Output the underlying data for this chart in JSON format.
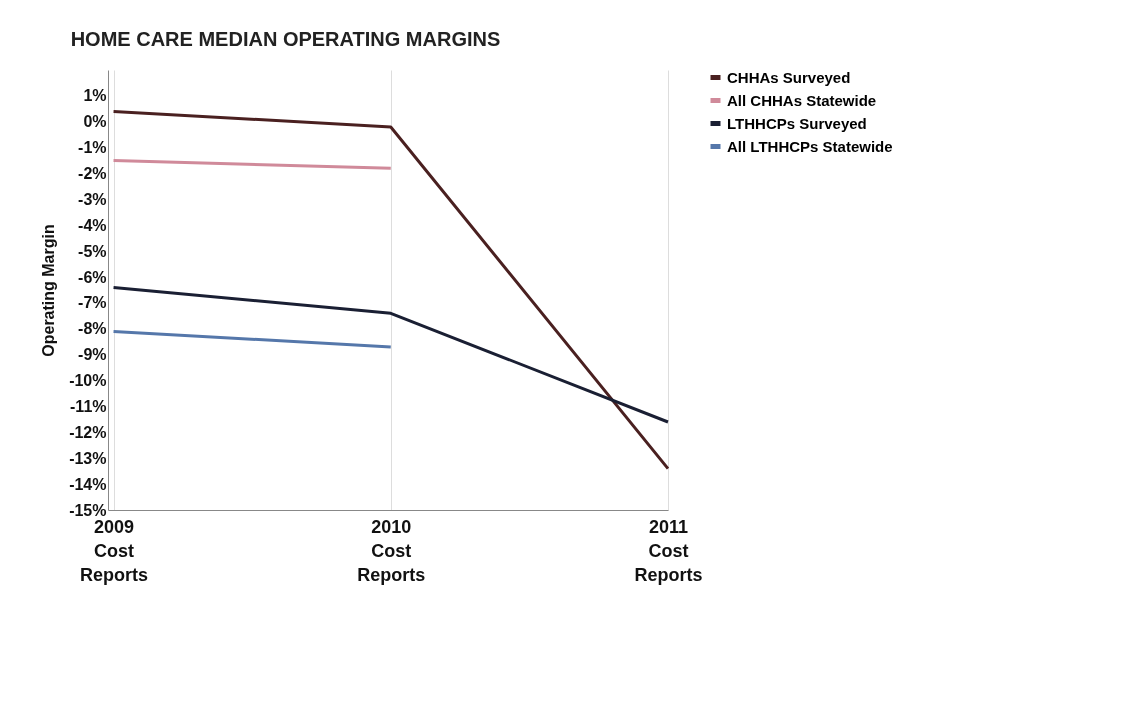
{
  "chart_data": {
    "type": "line",
    "title": "HOME CARE MEDIAN OPERATING MARGINS",
    "ylabel": "Operating Margin",
    "categories": [
      "2009\nCost\nReports",
      "2010\nCost\nReports",
      "2011\nCost\nReports"
    ],
    "series": [
      {
        "name": "CHHAs Surveyed",
        "color": "#4a2020",
        "values": [
          0.4,
          -0.2,
          -13.4
        ]
      },
      {
        "name": "All CHHAs Statewide",
        "color": "#d08a9a",
        "values": [
          -1.5,
          -1.8,
          null
        ]
      },
      {
        "name": "LTHHCPs Surveyed",
        "color": "#1a1f33",
        "values": [
          -6.4,
          -7.4,
          -11.6
        ]
      },
      {
        "name": "All LTHHCPs Statewide",
        "color": "#5577aa",
        "values": [
          -8.1,
          -8.7,
          null
        ]
      }
    ],
    "ylim": [
      -15,
      2
    ],
    "yticks": [
      {
        "value": -15,
        "label": "-15%"
      },
      {
        "value": -14,
        "label": "-14%"
      },
      {
        "value": -13,
        "label": "-13%"
      },
      {
        "value": -12,
        "label": "-12%"
      },
      {
        "value": -11,
        "label": "-11%"
      },
      {
        "value": -10,
        "label": "-10%"
      },
      {
        "value": -9,
        "label": "-9%"
      },
      {
        "value": -8,
        "label": "-8%"
      },
      {
        "value": -7,
        "label": "-7%"
      },
      {
        "value": -6,
        "label": "-6%"
      },
      {
        "value": -5,
        "label": "-5%"
      },
      {
        "value": -4,
        "label": "-4%"
      },
      {
        "value": -3,
        "label": "-3%"
      },
      {
        "value": -2,
        "label": "-2%"
      },
      {
        "value": -1,
        "label": "-1%"
      },
      {
        "value": 0,
        "label": "0%"
      },
      {
        "value": 1,
        "label": "1%"
      }
    ],
    "grid": "x",
    "legend": "right",
    "marker": "none",
    "line_style": "solid"
  }
}
